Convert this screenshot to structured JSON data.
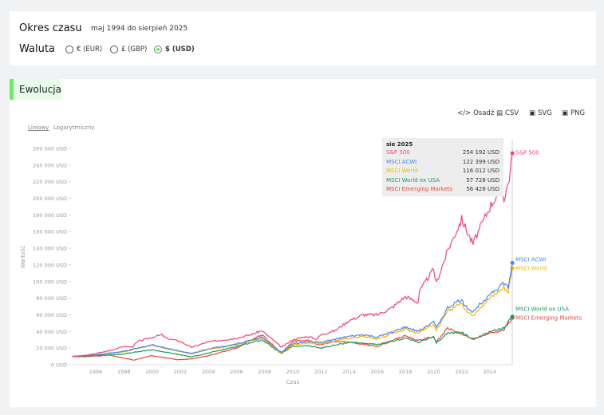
{
  "period": {
    "label": "Okres czasu",
    "value": "maj 1994 do sierpień 2025"
  },
  "currency": {
    "label": "Waluta",
    "options": [
      {
        "label": "€ (EUR)",
        "selected": false
      },
      {
        "label": "£ (GBP)",
        "selected": false
      },
      {
        "label": "$ (USD)",
        "selected": true
      }
    ]
  },
  "section": {
    "title": "Ewolucja"
  },
  "toolbar": {
    "embed": "Osadź",
    "csv": "CSV",
    "svg": "SVG",
    "png": "PNG"
  },
  "scale": {
    "linear": "Liniowy",
    "log": "Logarytmiczny",
    "selected": "linear"
  },
  "tooltip": {
    "date": "sie 2025",
    "rows": [
      {
        "name": "S&P 500",
        "value": "254 192 USD"
      },
      {
        "name": "MSCI ACWI",
        "value": "122 399 USD"
      },
      {
        "name": "MSCI World",
        "value": "116 012 USD"
      },
      {
        "name": "MSCI World ex USA",
        "value": "57 728 USD"
      },
      {
        "name": "MSCI Emerging Markets",
        "value": "56 428 USD"
      }
    ]
  },
  "chart_data": {
    "type": "line",
    "xlabel": "Czas",
    "ylabel": "Wartość",
    "ylim": [
      0,
      260000
    ],
    "xlim": [
      1994.33,
      2025.6
    ],
    "yticks": [
      "0 USD",
      "20 000 USD",
      "40 000 USD",
      "60 000 USD",
      "80 000 USD",
      "100 000 USD",
      "120 000 USD",
      "140 000 USD",
      "160 000 USD",
      "180 000 USD",
      "200 000 USD",
      "220 000 USD",
      "240 000 USD",
      "260 000 USD"
    ],
    "xticks": [
      "1996",
      "1998",
      "2000",
      "2002",
      "2004",
      "2006",
      "2008",
      "2010",
      "2012",
      "2014",
      "2016",
      "2018",
      "2020",
      "2022",
      "2024"
    ],
    "grid": false,
    "legend": "end-labels",
    "series": [
      {
        "name": "S&P 500",
        "color": "#f0457a",
        "points": [
          [
            1994.33,
            10000
          ],
          [
            1995,
            10500
          ],
          [
            1996,
            13500
          ],
          [
            1997,
            17000
          ],
          [
            1998,
            22000
          ],
          [
            1998.6,
            21500
          ],
          [
            1999,
            28000
          ],
          [
            2000,
            33000
          ],
          [
            2000.7,
            36000
          ],
          [
            2001,
            32000
          ],
          [
            2002,
            28000
          ],
          [
            2002.8,
            21000
          ],
          [
            2003,
            22000
          ],
          [
            2004,
            27500
          ],
          [
            2005,
            29500
          ],
          [
            2006,
            32000
          ],
          [
            2007,
            36000
          ],
          [
            2007.8,
            41000
          ],
          [
            2008,
            38000
          ],
          [
            2008.8,
            27000
          ],
          [
            2009.2,
            21000
          ],
          [
            2010,
            30000
          ],
          [
            2011,
            34000
          ],
          [
            2011.7,
            31000
          ],
          [
            2012,
            36000
          ],
          [
            2013,
            41000
          ],
          [
            2014,
            53000
          ],
          [
            2015,
            60000
          ],
          [
            2016,
            60000
          ],
          [
            2017,
            68000
          ],
          [
            2018,
            82000
          ],
          [
            2018.9,
            75000
          ],
          [
            2019,
            88000
          ],
          [
            2020,
            115000
          ],
          [
            2020.2,
            98000
          ],
          [
            2021,
            137000
          ],
          [
            2022,
            175000
          ],
          [
            2022.8,
            145000
          ],
          [
            2023,
            153000
          ],
          [
            2024,
            190000
          ],
          [
            2024.8,
            212000
          ],
          [
            2025,
            200000
          ],
          [
            2025.3,
            218000
          ],
          [
            2025.45,
            232000
          ],
          [
            2025.6,
            254192
          ]
        ]
      },
      {
        "name": "MSCI ACWI",
        "color": "#4a86f0",
        "points": [
          [
            1994.33,
            10000
          ],
          [
            1996,
            12000
          ],
          [
            1998,
            16000
          ],
          [
            2000,
            24000
          ],
          [
            2001,
            20000
          ],
          [
            2002.8,
            13500
          ],
          [
            2004,
            19000
          ],
          [
            2006,
            25000
          ],
          [
            2007.8,
            33000
          ],
          [
            2009.2,
            15000
          ],
          [
            2010,
            25000
          ],
          [
            2011,
            28000
          ],
          [
            2012,
            27000
          ],
          [
            2014,
            34000
          ],
          [
            2015,
            36000
          ],
          [
            2016,
            33000
          ],
          [
            2018,
            45000
          ],
          [
            2018.9,
            40000
          ],
          [
            2020,
            52000
          ],
          [
            2020.2,
            44000
          ],
          [
            2021,
            68000
          ],
          [
            2021.9,
            78000
          ],
          [
            2022.8,
            62000
          ],
          [
            2023,
            68000
          ],
          [
            2024,
            85000
          ],
          [
            2025,
            98000
          ],
          [
            2025.3,
            92000
          ],
          [
            2025.6,
            122399
          ]
        ]
      },
      {
        "name": "MSCI World",
        "color": "#f5b400",
        "points": [
          [
            1994.33,
            10000
          ],
          [
            1996,
            12000
          ],
          [
            1998,
            15500
          ],
          [
            2000,
            23500
          ],
          [
            2001,
            19500
          ],
          [
            2002.8,
            13000
          ],
          [
            2004,
            18500
          ],
          [
            2006,
            24000
          ],
          [
            2007.8,
            32000
          ],
          [
            2009.2,
            14500
          ],
          [
            2010,
            23500
          ],
          [
            2011,
            26500
          ],
          [
            2012,
            25500
          ],
          [
            2014,
            32000
          ],
          [
            2015,
            34000
          ],
          [
            2016,
            31000
          ],
          [
            2018,
            43000
          ],
          [
            2018.9,
            38000
          ],
          [
            2020,
            49000
          ],
          [
            2020.2,
            41000
          ],
          [
            2021,
            64000
          ],
          [
            2021.9,
            74000
          ],
          [
            2022.8,
            58000
          ],
          [
            2023,
            64000
          ],
          [
            2024,
            80000
          ],
          [
            2025,
            93000
          ],
          [
            2025.3,
            88000
          ],
          [
            2025.6,
            116012
          ]
        ]
      },
      {
        "name": "MSCI World ex USA",
        "color": "#1a9a5a",
        "points": [
          [
            1994.33,
            10000
          ],
          [
            1996,
            11000
          ],
          [
            1998,
            13000
          ],
          [
            2000,
            18000
          ],
          [
            2002.8,
            9500
          ],
          [
            2004,
            14000
          ],
          [
            2006,
            22000
          ],
          [
            2007.8,
            30000
          ],
          [
            2009.2,
            13500
          ],
          [
            2010,
            22000
          ],
          [
            2011,
            23000
          ],
          [
            2012,
            20000
          ],
          [
            2014,
            27000
          ],
          [
            2015,
            26000
          ],
          [
            2016,
            24000
          ],
          [
            2018,
            32000
          ],
          [
            2018.9,
            27000
          ],
          [
            2020,
            33000
          ],
          [
            2020.2,
            26000
          ],
          [
            2021,
            38000
          ],
          [
            2022,
            39000
          ],
          [
            2022.8,
            30000
          ],
          [
            2024,
            40000
          ],
          [
            2025,
            44000
          ],
          [
            2025.6,
            57728
          ]
        ]
      },
      {
        "name": "MSCI Emerging Markets",
        "color": "#e8453c",
        "points": [
          [
            1994.33,
            10000
          ],
          [
            1995,
            9500
          ],
          [
            1997,
            11500
          ],
          [
            1998.7,
            5500
          ],
          [
            2000,
            11000
          ],
          [
            2001.8,
            6000
          ],
          [
            2002.8,
            7000
          ],
          [
            2004,
            11000
          ],
          [
            2006,
            20000
          ],
          [
            2007.8,
            36000
          ],
          [
            2009.2,
            14000
          ],
          [
            2010,
            28000
          ],
          [
            2011,
            30000
          ],
          [
            2011.8,
            24000
          ],
          [
            2013,
            28000
          ],
          [
            2014,
            27000
          ],
          [
            2016,
            22000
          ],
          [
            2018,
            35000
          ],
          [
            2018.9,
            29000
          ],
          [
            2020,
            34000
          ],
          [
            2020.2,
            27000
          ],
          [
            2021,
            44000
          ],
          [
            2022.8,
            31000
          ],
          [
            2024,
            38000
          ],
          [
            2025,
            42000
          ],
          [
            2025.6,
            56428
          ]
        ]
      }
    ]
  }
}
